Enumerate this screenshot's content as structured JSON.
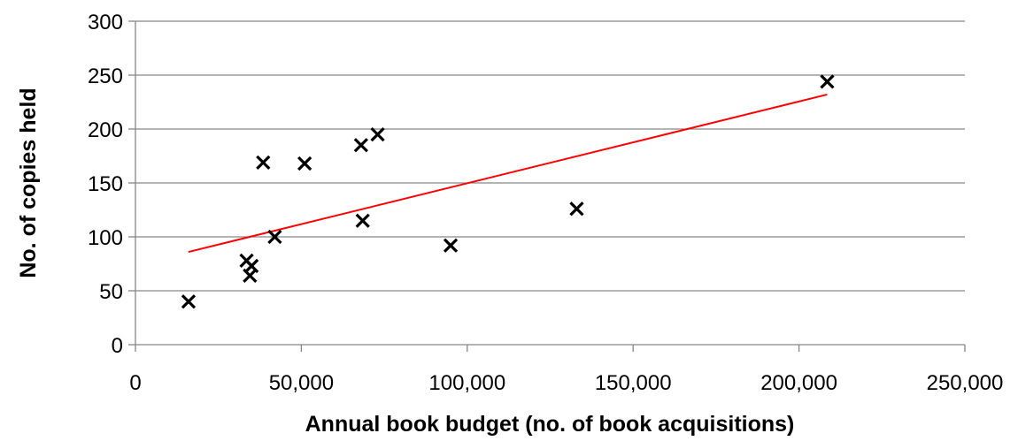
{
  "chart_data": {
    "type": "scatter",
    "xlabel": "Annual book budget (no. of book acquisitions)",
    "ylabel": "No. of copies held",
    "xlim": [
      0,
      250000
    ],
    "ylim": [
      0,
      300
    ],
    "x_ticks": [
      0,
      50000,
      100000,
      150000,
      200000,
      250000
    ],
    "x_tick_labels": [
      "0",
      "50,000",
      "100,000",
      "150,000",
      "200,000",
      "250,000"
    ],
    "y_ticks": [
      0,
      50,
      100,
      150,
      200,
      250,
      300
    ],
    "y_tick_labels": [
      "0",
      "50",
      "100",
      "150",
      "200",
      "250",
      "300"
    ],
    "grid": "horizontal",
    "marker": "x",
    "marker_color": "#000000",
    "points": [
      {
        "x": 16000,
        "y": 40
      },
      {
        "x": 33500,
        "y": 78
      },
      {
        "x": 34500,
        "y": 64
      },
      {
        "x": 35000,
        "y": 73
      },
      {
        "x": 38500,
        "y": 169
      },
      {
        "x": 42000,
        "y": 100
      },
      {
        "x": 51000,
        "y": 168
      },
      {
        "x": 68000,
        "y": 185
      },
      {
        "x": 68500,
        "y": 115
      },
      {
        "x": 73000,
        "y": 195
      },
      {
        "x": 95000,
        "y": 92
      },
      {
        "x": 133000,
        "y": 126
      },
      {
        "x": 208500,
        "y": 244
      }
    ],
    "trendline": {
      "color": "#ff0000",
      "start": {
        "x": 16000,
        "y": 86
      },
      "end": {
        "x": 208500,
        "y": 232
      }
    }
  }
}
